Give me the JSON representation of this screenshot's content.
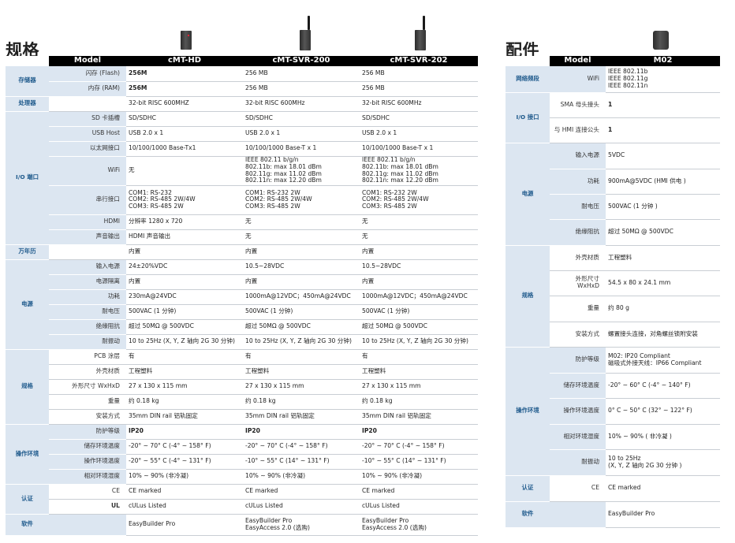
{
  "left": {
    "title": "规格",
    "columns": [
      "Model",
      "cMT-HD",
      "cMT-SVR-200",
      "cMT-SVR-202"
    ],
    "rows": [
      {
        "cat": "存储器",
        "feat": "闪存 (Flash)",
        "vals": [
          "256M",
          "256 MB",
          "256 MB"
        ],
        "bold": [
          0
        ]
      },
      {
        "cat": "",
        "feat": "内存 (RAM)",
        "vals": [
          "256M",
          "256 MB",
          "256 MB"
        ],
        "bold": [
          0
        ]
      },
      {
        "cat": "处理器",
        "feat": "",
        "vals": [
          "32-bit RISC 600MHZ",
          "32-bit RISC 600MHz",
          "32-bit RISC 600MHz"
        ]
      },
      {
        "cat": "I/O 端口",
        "feat": "SD 卡插槽",
        "vals": [
          "SD/SDHC",
          "SD/SDHC",
          "SD/SDHC"
        ]
      },
      {
        "cat": "",
        "feat": "USB Host",
        "vals": [
          "USB 2.0 x 1",
          "USB 2.0 x 1",
          "USB 2.0 x 1"
        ]
      },
      {
        "cat": "",
        "feat": "以太网接口",
        "vals": [
          "10/100/1000 Base-Tx1",
          "10/100/1000 Base-T x 1",
          "10/100/1000 Base-T x 1"
        ]
      },
      {
        "cat": "",
        "feat": "WiFi",
        "vals": [
          "无",
          "IEEE 802.11 b/g/n\n802.11b: max 18.01 dBm\n802.11g: max 11.02 dBm\n802.11n: max 12.20 dBm",
          "IEEE 802.11 b/g/n\n802.11b: max 18.01 dBm\n802.11g: max 11.02 dBm\n802.11n: max 12.20 dBm"
        ]
      },
      {
        "cat": "",
        "feat": "串行接口",
        "vals": [
          "COM1: RS-232\nCOM2: RS-485 2W/4W\nCOM3: RS-485 2W",
          "COM1: RS-232 2W\nCOM2: RS-485 2W/4W\nCOM3: RS-485 2W",
          "COM1: RS-232 2W\nCOM2: RS-485 2W/4W\nCOM3: RS-485 2W"
        ]
      },
      {
        "cat": "",
        "feat": "HDMI",
        "vals": [
          "分辨率 1280 x 720",
          "无",
          "无"
        ]
      },
      {
        "cat": "",
        "feat": "声音输出",
        "vals": [
          "HDMI 声音输出",
          "无",
          "无"
        ]
      },
      {
        "cat": "万年历",
        "feat": "",
        "vals": [
          "内置",
          "内置",
          "内置"
        ]
      },
      {
        "cat": "电源",
        "feat": "输入电源",
        "vals": [
          "24±20%VDC",
          "10.5~28VDC",
          "10.5~28VDC"
        ]
      },
      {
        "cat": "",
        "feat": "电源隔离",
        "vals": [
          "内置",
          "内置",
          "内置"
        ]
      },
      {
        "cat": "",
        "feat": "功耗",
        "vals": [
          "230mA@24VDC",
          "1000mA@12VDC；450mA@24VDC",
          "1000mA@12VDC；450mA@24VDC"
        ]
      },
      {
        "cat": "",
        "feat": "耐电压",
        "vals": [
          "500VAC (1 分钟)",
          "500VAC (1 分钟)",
          "500VAC (1 分钟)"
        ]
      },
      {
        "cat": "",
        "feat": "绝缘阻抗",
        "vals": [
          "超过 50MΩ  @ 500VDC",
          "超过 50MΩ  @ 500VDC",
          "超过 50MΩ  @ 500VDC"
        ]
      },
      {
        "cat": "",
        "feat": "耐振动",
        "vals": [
          "10 to 25Hz (X, Y, Z 轴向 2G 30 分钟)",
          "10 to 25Hz (X, Y, Z 轴向 2G 30 分钟)",
          "10 to 25Hz (X, Y, Z 轴向 2G 30 分钟)"
        ]
      },
      {
        "cat": "规格",
        "feat": "PCB 涂层",
        "vals": [
          "有",
          "有",
          "有"
        ]
      },
      {
        "cat": "",
        "feat": "外壳材质",
        "vals": [
          "工程塑料",
          "工程塑料",
          "工程塑料"
        ]
      },
      {
        "cat": "",
        "feat": "外形尺寸 WxHxD",
        "vals": [
          "27 x 130 x 115 mm",
          "27 x 130 x 115 mm",
          "27 x 130 x 115 mm"
        ]
      },
      {
        "cat": "",
        "feat": "重量",
        "vals": [
          "约 0.18 kg",
          "约 0.18 kg",
          "约 0.18 kg"
        ]
      },
      {
        "cat": "",
        "feat": "安装方式",
        "vals": [
          "35mm DIN rail 铝轨固定",
          "35mm DIN rail 铝轨固定",
          "35mm DIN rail 铝轨固定"
        ]
      },
      {
        "cat": "操作环境",
        "feat": "防护等级",
        "vals": [
          "IP20",
          "IP20",
          "IP20"
        ],
        "bold": [
          0,
          1,
          2
        ]
      },
      {
        "cat": "",
        "feat": "储存环境温度",
        "vals": [
          "-20° ~ 70° C (-4° ~ 158° F)",
          "-20° ~ 70° C (-4° ~ 158° F)",
          "-20° ~ 70° C (-4° ~ 158° F)"
        ]
      },
      {
        "cat": "",
        "feat": "操作环境温度",
        "vals": [
          "-20° ~ 55° C (-4° ~ 131° F)",
          "-10° ~ 55° C (14° ~ 131° F)",
          "-10° ~ 55° C (14° ~ 131° F)"
        ]
      },
      {
        "cat": "",
        "feat": "相对环境湿度",
        "vals": [
          "10% ~ 90% (非冷凝)",
          "10% ~ 90% (非冷凝)",
          "10% ~ 90% (非冷凝)"
        ]
      },
      {
        "cat": "认证",
        "feat": "CE",
        "vals": [
          "CE marked",
          "CE marked",
          "CE marked"
        ]
      },
      {
        "cat": "",
        "feat": "UL",
        "vals": [
          "cULus Listed",
          "cULus Listed",
          "cULus Listed"
        ],
        "featbold": true
      },
      {
        "cat": "软件",
        "feat": "",
        "vals": [
          "EasyBuilder Pro",
          "EasyBuilder Pro\nEasyAccess 2.0 (选购)",
          "EasyBuilder Pro\nEasyAccess 2.0 (选购)"
        ]
      }
    ]
  },
  "right": {
    "title": "配件",
    "columns": [
      "Model",
      "M02"
    ],
    "rows": [
      {
        "cat": "网络频段",
        "feat": "WiFi",
        "vals": [
          "IEEE 802.11b\nIEEE 802.11g\nIEEE 802.11n"
        ]
      },
      {
        "cat": "I/O 接口",
        "feat": "SMA 母头接头",
        "vals": [
          "1"
        ],
        "bold": [
          0
        ]
      },
      {
        "cat": "",
        "feat": "与 HMI 连接公头",
        "vals": [
          "1"
        ],
        "bold": [
          0
        ]
      },
      {
        "cat": "电源",
        "feat": "输入电源",
        "vals": [
          "5VDC"
        ]
      },
      {
        "cat": "",
        "feat": "功耗",
        "vals": [
          "900mA@5VDC (HMI 供电 )"
        ]
      },
      {
        "cat": "",
        "feat": "耐电压",
        "vals": [
          "500VAC (1 分钟 )"
        ]
      },
      {
        "cat": "",
        "feat": "绝缘阻抗",
        "vals": [
          "超过 50MΩ  @  500VDC"
        ]
      },
      {
        "cat": "规格",
        "feat": "外壳材质",
        "vals": [
          "工程塑料"
        ]
      },
      {
        "cat": "",
        "feat": "外形尺寸 WxHxD",
        "vals": [
          "54.5 x 80 x 24.1 mm"
        ]
      },
      {
        "cat": "",
        "feat": "重量",
        "vals": [
          "约 80 g"
        ]
      },
      {
        "cat": "",
        "feat": "安装方式",
        "vals": [
          "螺置接头连接，对角螺丝锁附安装"
        ]
      },
      {
        "cat": "操作环境",
        "feat": "防护等级",
        "vals": [
          "M02: IP20 Compliant\n磁吸式外接天线：IP66 Compliant"
        ]
      },
      {
        "cat": "",
        "feat": "储存环境温度",
        "vals": [
          "-20° ~ 60° C (-4° ~ 140° F)"
        ]
      },
      {
        "cat": "",
        "feat": "操作环境温度",
        "vals": [
          "0° C ~ 50° C (32° ~ 122° F)"
        ]
      },
      {
        "cat": "",
        "feat": "相对环境湿度",
        "vals": [
          "10% ~ 90% ( 非冷凝 )"
        ]
      },
      {
        "cat": "",
        "feat": "耐振动",
        "vals": [
          "10 to 25Hz\n(X, Y, Z 轴向 2G 30 分钟 )"
        ]
      },
      {
        "cat": "认证",
        "feat": "CE",
        "vals": [
          "CE marked"
        ]
      },
      {
        "cat": "软件",
        "feat": "",
        "vals": [
          "EasyBuilder Pro"
        ]
      }
    ]
  }
}
